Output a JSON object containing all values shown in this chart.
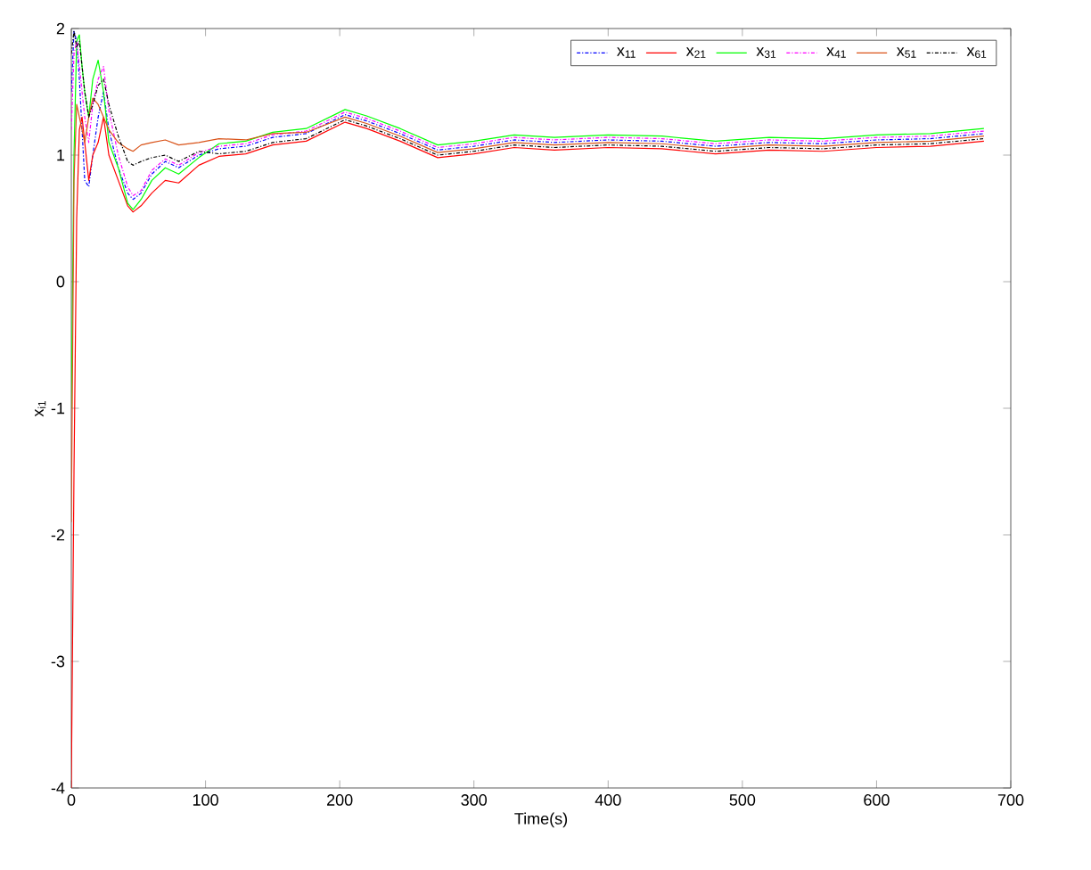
{
  "chart_data": {
    "type": "line",
    "xlabel": "Time(s)",
    "ylabel": "x$_{i1}$",
    "xlim": [
      0,
      700
    ],
    "ylim": [
      -4,
      2
    ],
    "xticks": [
      0,
      100,
      200,
      300,
      400,
      500,
      600,
      700
    ],
    "yticks": [
      -4,
      -3,
      -2,
      -1,
      0,
      1,
      2
    ],
    "legend": "top right",
    "grid": false,
    "x": [
      0,
      2,
      4,
      6,
      8,
      10,
      13,
      16,
      20,
      24,
      28,
      35,
      42,
      46,
      52,
      60,
      70,
      80,
      95,
      110,
      130,
      150,
      175,
      204,
      220,
      245,
      273,
      300,
      330,
      360,
      400,
      440,
      480,
      520,
      560,
      600,
      640,
      680
    ],
    "series": [
      {
        "name": "x$_{11}$",
        "color": "#0000ff",
        "line_style": "dashed",
        "values": [
          1.5,
          1.98,
          1.9,
          1.6,
          1.2,
          0.8,
          0.75,
          1.0,
          1.3,
          1.5,
          1.2,
          0.9,
          0.7,
          0.65,
          0.7,
          0.85,
          0.95,
          0.9,
          1.0,
          1.05,
          1.07,
          1.14,
          1.17,
          1.32,
          1.27,
          1.17,
          1.04,
          1.07,
          1.12,
          1.1,
          1.12,
          1.11,
          1.07,
          1.1,
          1.09,
          1.12,
          1.13,
          1.17
        ]
      },
      {
        "name": "x$_{21}$",
        "color": "#ff0000",
        "line_style": "solid",
        "values": [
          -4,
          -1.5,
          0.5,
          1.2,
          1.3,
          1.1,
          0.8,
          1.0,
          1.1,
          1.3,
          1.0,
          0.8,
          0.6,
          0.55,
          0.6,
          0.7,
          0.8,
          0.78,
          0.92,
          0.99,
          1.01,
          1.08,
          1.11,
          1.26,
          1.21,
          1.11,
          0.98,
          1.01,
          1.06,
          1.04,
          1.06,
          1.05,
          1.01,
          1.04,
          1.03,
          1.06,
          1.07,
          1.11
        ]
      },
      {
        "name": "x$_{31}$",
        "color": "#00ff00",
        "line_style": "solid",
        "values": [
          -1.0,
          1.0,
          1.9,
          1.95,
          1.7,
          1.5,
          1.3,
          1.6,
          1.75,
          1.5,
          1.1,
          0.9,
          0.62,
          0.57,
          0.65,
          0.8,
          0.9,
          0.85,
          0.98,
          1.09,
          1.11,
          1.18,
          1.21,
          1.36,
          1.31,
          1.21,
          1.08,
          1.11,
          1.16,
          1.14,
          1.16,
          1.15,
          1.11,
          1.14,
          1.13,
          1.16,
          1.17,
          1.21
        ]
      },
      {
        "name": "x$_{41}$",
        "color": "#ff00ff",
        "line_style": "dashed",
        "values": [
          1.2,
          1.8,
          1.9,
          1.7,
          1.5,
          1.3,
          1.1,
          1.4,
          1.6,
          1.7,
          1.35,
          1.0,
          0.75,
          0.68,
          0.72,
          0.88,
          0.97,
          0.92,
          1.02,
          1.07,
          1.09,
          1.16,
          1.19,
          1.34,
          1.29,
          1.19,
          1.06,
          1.09,
          1.14,
          1.12,
          1.14,
          1.13,
          1.09,
          1.12,
          1.11,
          1.14,
          1.15,
          1.19
        ]
      },
      {
        "name": "x$_{51}$",
        "color": "#d95319",
        "line_style": "solid",
        "values": [
          -1.9,
          0.8,
          1.4,
          1.3,
          1.2,
          1.1,
          1.3,
          1.45,
          1.4,
          1.3,
          1.2,
          1.1,
          1.05,
          1.03,
          1.08,
          1.1,
          1.12,
          1.08,
          1.1,
          1.13,
          1.12,
          1.17,
          1.18,
          1.3,
          1.25,
          1.15,
          1.02,
          1.05,
          1.1,
          1.08,
          1.1,
          1.09,
          1.05,
          1.08,
          1.07,
          1.1,
          1.11,
          1.15
        ]
      },
      {
        "name": "x$_{61}$",
        "color": "#000000",
        "line_style": "dashed",
        "values": [
          1.8,
          1.98,
          1.85,
          1.9,
          1.7,
          1.5,
          1.3,
          1.4,
          1.55,
          1.6,
          1.4,
          1.15,
          0.95,
          0.92,
          0.95,
          0.98,
          1.0,
          0.95,
          1.03,
          1.01,
          1.03,
          1.1,
          1.13,
          1.28,
          1.23,
          1.13,
          1.0,
          1.03,
          1.08,
          1.06,
          1.08,
          1.07,
          1.03,
          1.06,
          1.05,
          1.08,
          1.09,
          1.13
        ]
      }
    ]
  }
}
